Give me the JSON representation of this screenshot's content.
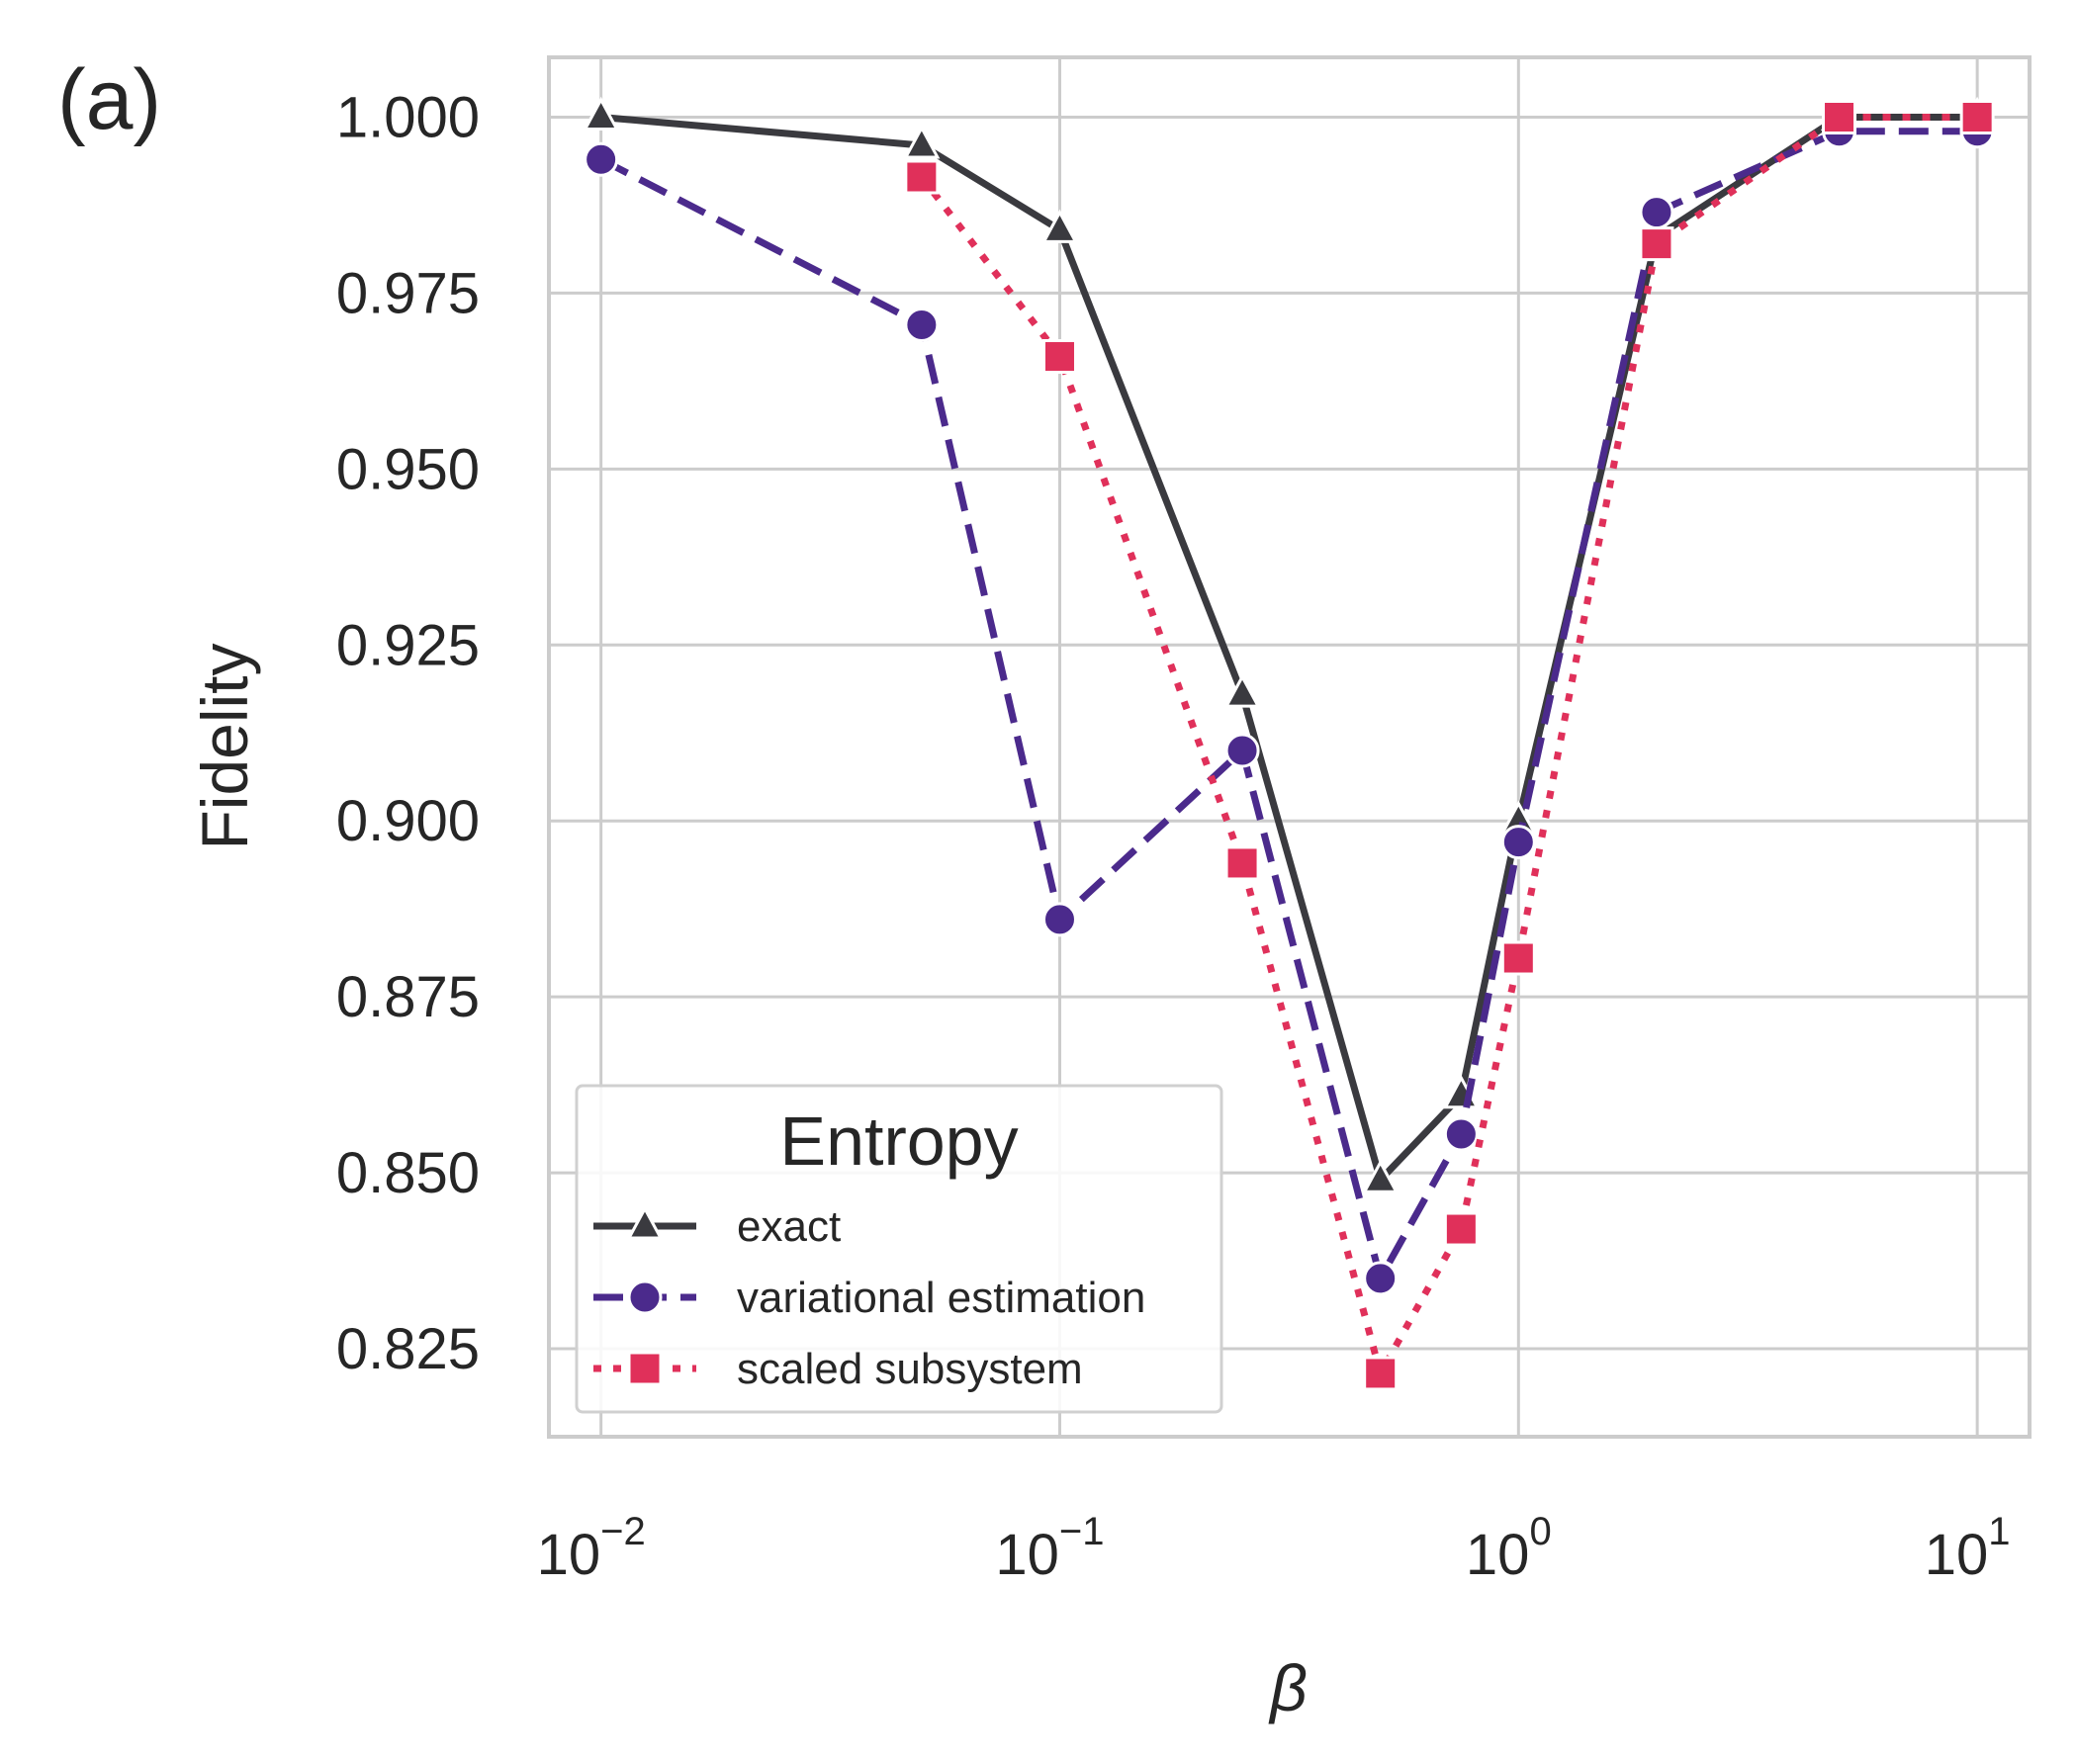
{
  "panel_label": "(a)",
  "chart_data": {
    "type": "line",
    "xlabel": "β",
    "ylabel": "Fidelity",
    "xscale": "log",
    "xlim": [
      0.0077,
      13.0
    ],
    "ylim": [
      0.8125,
      1.0085
    ],
    "grid": true,
    "x_ticks": [
      {
        "value": 0.01,
        "base": "10",
        "exp": "−2"
      },
      {
        "value": 0.1,
        "base": "10",
        "exp": "−1"
      },
      {
        "value": 1,
        "base": "10",
        "exp": "0"
      },
      {
        "value": 10,
        "base": "10",
        "exp": "1"
      }
    ],
    "y_ticks": [
      {
        "value": 0.825,
        "label": "0.825"
      },
      {
        "value": 0.85,
        "label": "0.850"
      },
      {
        "value": 0.875,
        "label": "0.875"
      },
      {
        "value": 0.9,
        "label": "0.900"
      },
      {
        "value": 0.925,
        "label": "0.925"
      },
      {
        "value": 0.95,
        "label": "0.950"
      },
      {
        "value": 0.975,
        "label": "0.975"
      },
      {
        "value": 1.0,
        "label": "1.000"
      }
    ],
    "legend": {
      "title": "Entropy",
      "placement": "lower-left"
    },
    "series": [
      {
        "name": "exact",
        "color": "#3a3a3f",
        "marker": "triangle",
        "dash": "solid",
        "points": [
          [
            0.01,
            1.0
          ],
          [
            0.05,
            0.996
          ],
          [
            0.1,
            0.984
          ],
          [
            0.25,
            0.918
          ],
          [
            0.5,
            0.849
          ],
          [
            0.75,
            0.861
          ],
          [
            1.0,
            0.9
          ],
          [
            2.0,
            0.983
          ],
          [
            5.0,
            1.0
          ],
          [
            10.0,
            1.0
          ]
        ]
      },
      {
        "name": "variational estimation",
        "color": "#4b2a8c",
        "marker": "circle",
        "dash": "dashed",
        "points": [
          [
            0.01,
            0.994
          ],
          [
            0.05,
            0.9705
          ],
          [
            0.1,
            0.886
          ],
          [
            0.25,
            0.91
          ],
          [
            0.5,
            0.835
          ],
          [
            0.75,
            0.8555
          ],
          [
            1.0,
            0.897
          ],
          [
            2.0,
            0.9865
          ],
          [
            5.0,
            0.998
          ],
          [
            10.0,
            0.998
          ]
        ]
      },
      {
        "name": "scaled subsystem",
        "color": "#e0305a",
        "marker": "square",
        "dash": "dotted",
        "points": [
          [
            0.05,
            0.9915
          ],
          [
            0.1,
            0.966
          ],
          [
            0.25,
            0.894
          ],
          [
            0.5,
            0.8215
          ],
          [
            0.75,
            0.842
          ],
          [
            1.0,
            0.8805
          ],
          [
            2.0,
            0.982
          ],
          [
            5.0,
            1.0
          ],
          [
            10.0,
            1.0
          ]
        ]
      }
    ]
  }
}
